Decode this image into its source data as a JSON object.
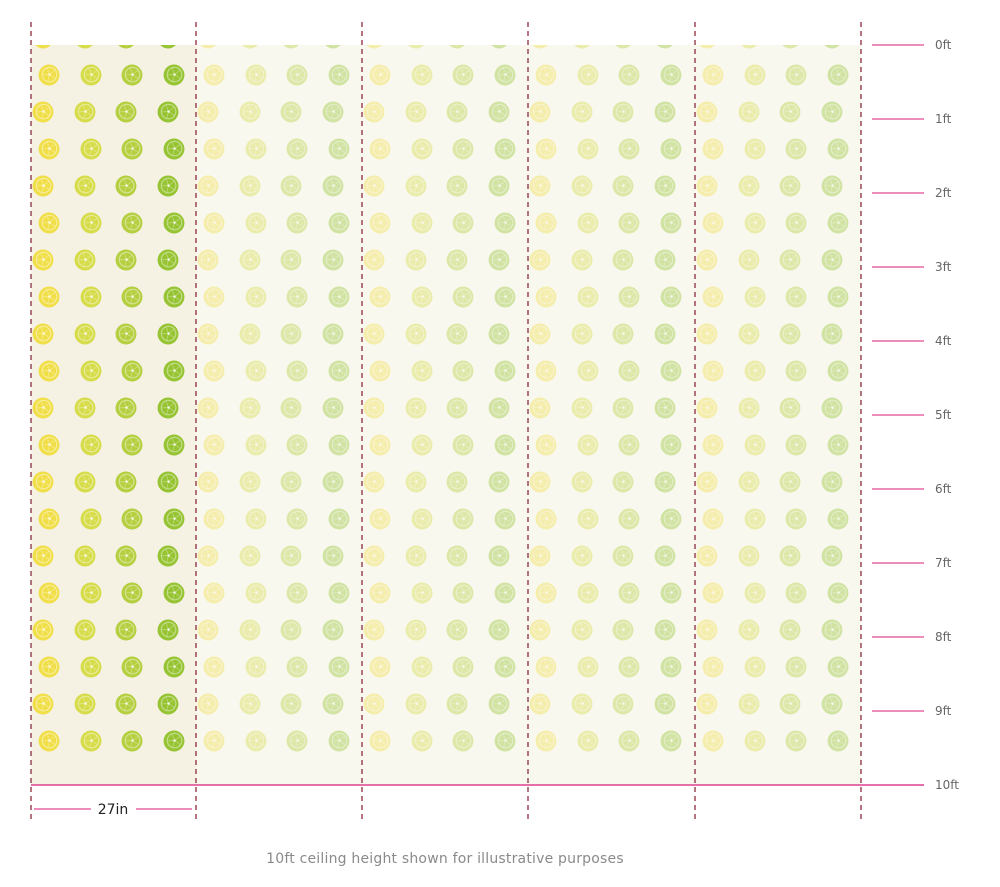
{
  "diagram": {
    "panel_width_label": "27in",
    "panel_count": 5,
    "height_ticks": [
      "0ft",
      "1ft",
      "2ft",
      "3ft",
      "4ft",
      "5ft",
      "6ft",
      "7ft",
      "8ft",
      "9ft",
      "10ft"
    ],
    "caption": "10ft ceiling height shown for illustrative purposes"
  },
  "colors": {
    "background": "#ffffff",
    "panel_first": "#f5f2e4",
    "panel_faded": "#f9f8ef",
    "seam": "#8b2b3c",
    "ruler": "#d81b7a",
    "lemon": "#f0de4a",
    "lime": "#98c531"
  },
  "pattern": {
    "motif": "citrus-slice-icon",
    "first_panel_opacity": 1.0,
    "other_panel_opacity": 0.4
  }
}
